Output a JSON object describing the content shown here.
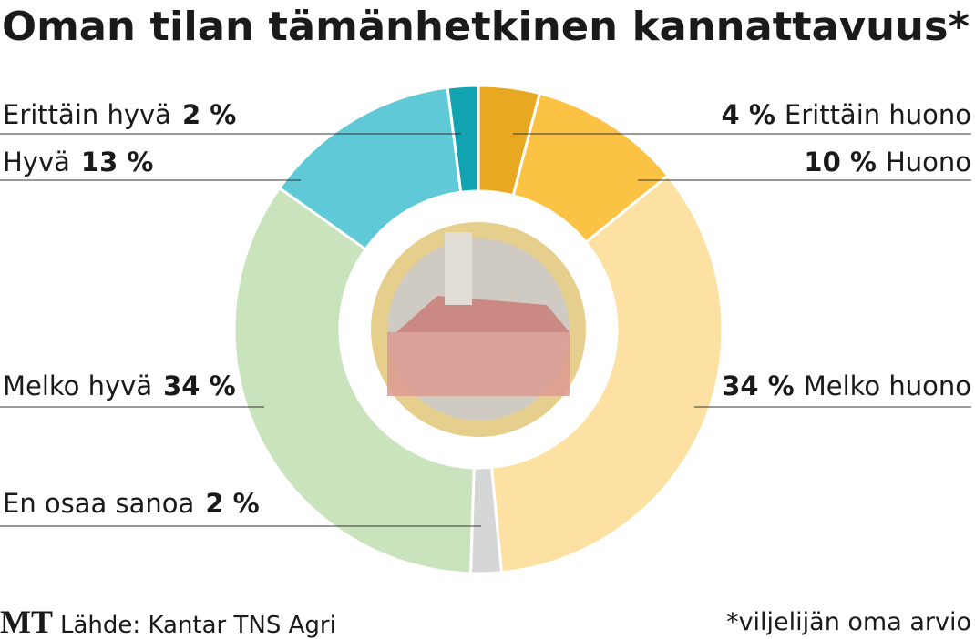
{
  "chart_data": {
    "type": "pie",
    "title": "Oman tilan tämänhetkinen kannattavuus*",
    "categories": [
      "Erittäin huono",
      "Huono",
      "Melko huono",
      "En osaa sanoa",
      "Melko hyvä",
      "Hyvä",
      "Erittäin hyvä"
    ],
    "values": [
      4,
      10,
      34,
      2,
      34,
      13,
      2
    ],
    "value_labels": [
      "4 %",
      "10 %",
      "34 %",
      "2 %",
      "34 %",
      "13 %",
      "2 %"
    ],
    "colors": [
      "#e9a822",
      "#fbc244",
      "#fce1a2",
      "#d4d6d7",
      "#c9e4bd",
      "#5fc9d7",
      "#12a3b0"
    ],
    "donut": true,
    "logo": "MT",
    "source": "Lähde: Kantar TNS Agri",
    "footnote": "*viljelijän oma arvio"
  }
}
